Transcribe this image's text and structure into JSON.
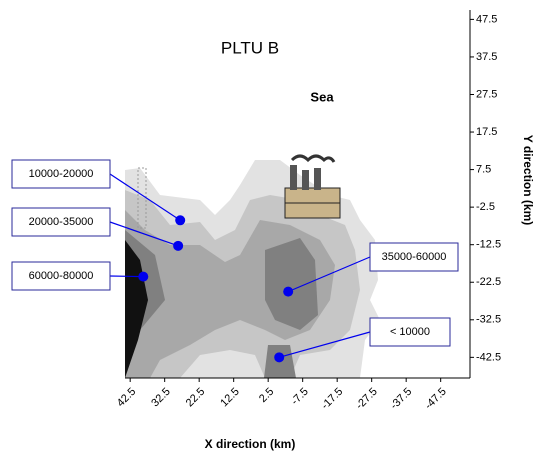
{
  "chart_data": {
    "type": "contour",
    "title": "PLTU B",
    "annotation": "Sea",
    "xlabel": "X direction (km)",
    "ylabel": "Y direction (km)",
    "xlim": [
      44,
      -56
    ],
    "ylim": [
      -48,
      50
    ],
    "xticks": [
      42.5,
      32.5,
      22.5,
      12.5,
      2.5,
      -7.5,
      -17.5,
      -27.5,
      -37.5,
      -47.5
    ],
    "yticks": [
      47.5,
      37.5,
      27.5,
      17.5,
      7.5,
      -2.5,
      -12.5,
      -22.5,
      -32.5,
      -42.5
    ],
    "labels": [
      {
        "text": "10000-20000",
        "x": 28,
        "y": -6
      },
      {
        "text": "20000-35000",
        "x": 28.6,
        "y": -12.8
      },
      {
        "text": "60000-80000",
        "x": 38.7,
        "y": -21
      },
      {
        "text": "35000-60000",
        "x": -3.3,
        "y": -25
      },
      {
        "text": "< 10000",
        "x": -0.7,
        "y": -42.5
      }
    ],
    "color": "#0000ee"
  }
}
